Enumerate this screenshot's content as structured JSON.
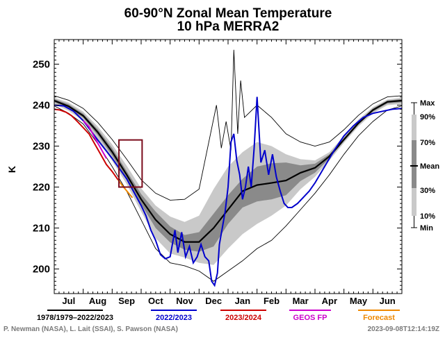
{
  "chart_data": {
    "type": "line",
    "title": "60-90°N Zonal Mean Temperature",
    "subtitle": "10 hPa   MERRA2",
    "ylabel": "K",
    "ylim": [
      194,
      256
    ],
    "yticks": [
      200,
      210,
      220,
      230,
      240,
      250
    ],
    "months": [
      "Jul",
      "Aug",
      "Sep",
      "Oct",
      "Nov",
      "Dec",
      "Jan",
      "Feb",
      "Mar",
      "Apr",
      "May",
      "Jun"
    ],
    "x": [
      0,
      15,
      30,
      45,
      60,
      75,
      90,
      105,
      120,
      135,
      150,
      165,
      180,
      195,
      210,
      225,
      240,
      255,
      270,
      285,
      300,
      315,
      330,
      345,
      360
    ],
    "envelope": {
      "max": [
        242.3,
        241.2,
        239.2,
        235.8,
        231.6,
        226.8,
        221.8,
        218.5,
        216.8,
        217.0,
        219.5,
        226.5,
        233.0,
        236.0,
        240.0,
        237.0,
        233.0,
        231.0,
        230.0,
        231.0,
        234.0,
        237.5,
        240.3,
        242.0,
        242.3
      ],
      "p90": [
        241.8,
        240.6,
        238.4,
        234.8,
        230.4,
        225.2,
        219.7,
        215.5,
        212.8,
        211.5,
        213.0,
        219.5,
        225.0,
        228.5,
        231.0,
        230.0,
        228.0,
        226.8,
        226.5,
        228.5,
        232.5,
        236.5,
        239.5,
        241.4,
        241.8
      ],
      "p70": [
        241.5,
        240.2,
        237.9,
        234.1,
        229.5,
        223.9,
        218.3,
        214.0,
        210.4,
        208.3,
        209.0,
        213.5,
        218.0,
        222.0,
        225.0,
        225.8,
        226.0,
        225.3,
        225.7,
        228.0,
        232.0,
        236.0,
        239.2,
        241.1,
        241.5
      ],
      "mean": [
        241.1,
        239.7,
        237.4,
        233.4,
        228.6,
        223.0,
        217.0,
        212.0,
        208.5,
        206.6,
        206.6,
        210.0,
        214.5,
        219.0,
        220.5,
        221.0,
        221.6,
        223.5,
        224.7,
        227.5,
        231.6,
        235.6,
        238.8,
        240.8,
        241.1
      ],
      "p30": [
        240.7,
        239.2,
        236.9,
        232.7,
        227.7,
        222.1,
        215.8,
        210.0,
        206.5,
        204.7,
        204.2,
        205.5,
        211.0,
        215.0,
        216.5,
        217.0,
        218.0,
        221.5,
        223.5,
        227.0,
        231.2,
        235.2,
        238.4,
        240.4,
        240.7
      ],
      "p10": [
        240.3,
        238.6,
        236.2,
        231.7,
        226.4,
        220.7,
        214.0,
        207.5,
        203.8,
        202.8,
        201.5,
        201.0,
        205.0,
        208.5,
        211.0,
        213.0,
        215.5,
        219.5,
        222.5,
        226.5,
        230.8,
        234.8,
        238.0,
        240.0,
        240.3
      ],
      "min": [
        239.8,
        238.0,
        235.4,
        230.6,
        225.0,
        219.0,
        212.0,
        205.0,
        201.5,
        200.8,
        199.5,
        197.0,
        199.5,
        202.0,
        205.0,
        207.0,
        210.5,
        214.5,
        218.5,
        223.0,
        228.0,
        232.5,
        236.0,
        238.8,
        239.8
      ]
    },
    "max_spikes": {
      "x": [
        168,
        173,
        178,
        183,
        186,
        190,
        193,
        197
      ],
      "values": [
        240,
        229.5,
        236,
        229,
        253.5,
        233,
        246,
        237
      ]
    },
    "series": [
      {
        "name": "2022/2023",
        "color": "#0000cc",
        "x": [
          0,
          10,
          20,
          30,
          45,
          60,
          75,
          90,
          95,
          100,
          105,
          110,
          115,
          120,
          125,
          128,
          132,
          136,
          140,
          144,
          148,
          152,
          156,
          160,
          163,
          166,
          169,
          171,
          174,
          177,
          180,
          183,
          186,
          189,
          192,
          195,
          198,
          201,
          204,
          207,
          210,
          214,
          218,
          222,
          226,
          230,
          234,
          238,
          242,
          246,
          252,
          258,
          264,
          270,
          280,
          290,
          300,
          310,
          320,
          330,
          340,
          350,
          360
        ],
        "values": [
          240.0,
          239.8,
          238.5,
          236.2,
          231.5,
          227.0,
          222.0,
          215.5,
          213.0,
          209.5,
          207.0,
          203.5,
          202.5,
          203.0,
          209.5,
          204.0,
          209.0,
          203.0,
          205.5,
          201.5,
          203.0,
          206.0,
          203.0,
          202.0,
          197.0,
          196.0,
          199.0,
          206.0,
          210.0,
          214.0,
          220.0,
          231.0,
          233.0,
          226.5,
          223.0,
          217.0,
          220.0,
          225.0,
          220.0,
          229.5,
          242.0,
          226.0,
          229.0,
          223.0,
          228.0,
          222.5,
          219.0,
          216.0,
          215.0,
          215.0,
          216.0,
          217.5,
          219.0,
          221.0,
          225.0,
          229.0,
          232.5,
          235.0,
          237.0,
          238.0,
          238.5,
          239.0,
          239.2
        ]
      },
      {
        "name": "2023/2024",
        "color": "#cc0000",
        "x": [
          0,
          6,
          12,
          18,
          24,
          30,
          36,
          42,
          48,
          54,
          60,
          66
        ],
        "values": [
          239.0,
          238.8,
          238.3,
          237.4,
          236.0,
          234.5,
          233.0,
          230.5,
          228.0,
          225.5,
          223.8,
          221.8
        ]
      },
      {
        "name": "GEOS FP",
        "color": "#cc00cc",
        "x": [
          30,
          36,
          42,
          48,
          54
        ],
        "values": [
          236.2,
          234.7,
          232.0,
          229.5,
          227.0
        ]
      },
      {
        "name": "Forecast",
        "color": "#ee8800",
        "x": [
          66,
          71,
          76,
          81
        ],
        "values": [
          221.8,
          220.2,
          218.8,
          217.4
        ]
      }
    ],
    "legend": {
      "bands": [
        "Max",
        "90%",
        "70%",
        "Mean",
        "30%",
        "10%",
        "Min"
      ],
      "lines": [
        {
          "label": "1978/1979–2022/2023",
          "color": "#000000"
        },
        {
          "label": "2022/2023",
          "color": "#0000cc"
        },
        {
          "label": "2023/2024",
          "color": "#cc0000"
        },
        {
          "label": "GEOS FP",
          "color": "#cc00cc"
        },
        {
          "label": "Forecast",
          "color": "#ee8800"
        }
      ]
    },
    "highlight_box": {
      "x0": 67,
      "x1": 91,
      "y0": 220,
      "y1": 231.5,
      "color": "#7a0a1a"
    },
    "credits": "P. Newman (NASA), L. Lait (SSAI), S. Pawson (NASA)",
    "timestamp": "2023-09-08T12:14:19Z"
  }
}
